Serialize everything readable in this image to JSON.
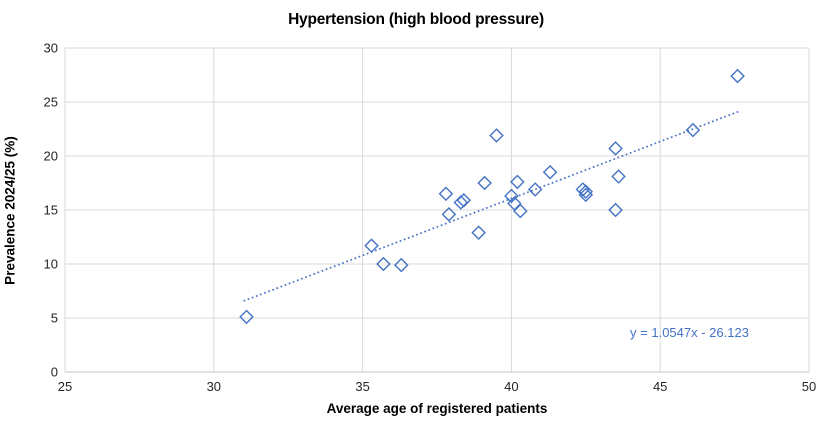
{
  "chart_data": {
    "type": "scatter",
    "title": "Hypertension (high blood pressure)",
    "xlabel": "Average age of registered patients",
    "ylabel": "Prevalence 2024/25 (%)",
    "xlim": [
      25,
      50
    ],
    "ylim": [
      0,
      30
    ],
    "x_ticks": [
      25,
      30,
      35,
      40,
      45,
      50
    ],
    "y_ticks": [
      0,
      5,
      10,
      15,
      20,
      25,
      30
    ],
    "grid": true,
    "legend": "none",
    "marker": "open-diamond",
    "marker_color": "#4472C4",
    "points": [
      [
        31.1,
        5.1
      ],
      [
        35.3,
        11.7
      ],
      [
        35.7,
        10.0
      ],
      [
        36.3,
        9.9
      ],
      [
        37.8,
        16.5
      ],
      [
        37.9,
        14.6
      ],
      [
        38.3,
        15.7
      ],
      [
        38.4,
        15.9
      ],
      [
        38.9,
        12.9
      ],
      [
        39.1,
        17.5
      ],
      [
        39.5,
        21.9
      ],
      [
        40.0,
        16.3
      ],
      [
        40.1,
        15.6
      ],
      [
        40.2,
        17.6
      ],
      [
        40.3,
        14.9
      ],
      [
        40.8,
        16.9
      ],
      [
        41.3,
        18.5
      ],
      [
        42.4,
        16.9
      ],
      [
        42.5,
        16.7
      ],
      [
        42.5,
        16.4
      ],
      [
        43.5,
        15.0
      ],
      [
        43.5,
        20.7
      ],
      [
        43.6,
        18.1
      ],
      [
        46.1,
        22.4
      ],
      [
        47.6,
        27.4
      ]
    ],
    "trendline": {
      "equation": "y = 1.0547x - 26.123",
      "slope": 1.0547,
      "intercept": -26.123,
      "x_start": 31.0,
      "x_end": 47.65,
      "style": "dotted",
      "color": "#4472C4"
    },
    "colors": {
      "accent": "#4472C4",
      "gridline": "#D9D9D9",
      "axis_line": "#C6C6C6",
      "title_text": "#000000",
      "tick_text": "#262626"
    }
  }
}
